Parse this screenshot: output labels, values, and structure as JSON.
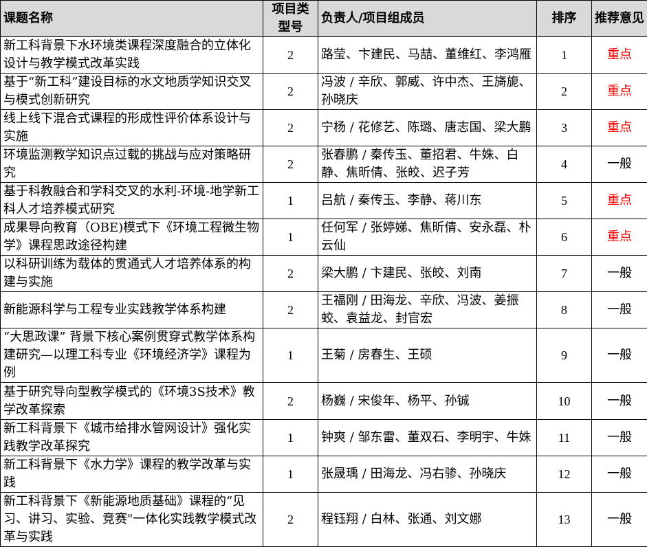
{
  "headers": {
    "title": "课题名称",
    "type": "项目类型号",
    "members": "负责人/项目组成员",
    "rank": "排序",
    "recommendation": "推荐意见"
  },
  "colors": {
    "header_bg": "#d9d9d9",
    "key_recommendation": "#ff0000"
  },
  "rows": [
    {
      "title": "新工科背景下水环境类课程深度融合的立体化设计与教学模式改革实践",
      "type": "2",
      "members": "路莹、卞建民、马喆、董维红、李鸿雁",
      "rank": "1",
      "recommendation": "重点",
      "highlight": true
    },
    {
      "title": "基于“新工科”建设目标的水文地质学知识交叉与模式创新研究",
      "type": "2",
      "members": "冯波 / 辛欣、郭威、许中杰、王旖旎、孙晓庆",
      "rank": "2",
      "recommendation": "重点",
      "highlight": true
    },
    {
      "title": "线上线下混合式课程的形成性评价体系设计与实施",
      "type": "2",
      "members": "宁杨 / 花修艺、陈璐、唐志国、梁大鹏",
      "rank": "3",
      "recommendation": "重点",
      "highlight": true
    },
    {
      "title": "环境监测教学知识点过载的挑战与应对策略研究",
      "type": "2",
      "members": "张春鹏 / 秦传玉、董招君、牛姝、白静、焦昕倩、张皎、迟子芳",
      "rank": "4",
      "recommendation": "一般",
      "highlight": false
    },
    {
      "title": "基于科教融合和学科交叉的水利-环境-地学新工科人才培养模式研究",
      "type": "1",
      "members": "吕航 / 秦传玉、李静、蒋川东",
      "rank": "5",
      "recommendation": "重点",
      "highlight": true
    },
    {
      "title": "成果导向教育（OBE)模式下《环境工程微生物学》课程思政途径构建",
      "type": "1",
      "members": "任何军 / 张婷娣、焦昕倩、安永磊、朴云仙",
      "rank": "6",
      "recommendation": "重点",
      "highlight": true
    },
    {
      "title": "以科研训练为载体的贯通式人才培养体系的构建与实施",
      "type": "2",
      "members": "梁大鹏 / 卞建民、张皎、刘南",
      "rank": "7",
      "recommendation": "一般",
      "highlight": false
    },
    {
      "title": "新能源科学与工程专业实践教学体系构建",
      "type": "2",
      "members": "王福刚 / 田海龙、辛欣、冯波、姜振蛟、袁益龙、封官宏",
      "rank": "8",
      "recommendation": "一般",
      "highlight": false
    },
    {
      "title": "“大思政课” 背景下核心案例贯穿式教学体系构建研究—以理工科专业《环境经济学》课程为例",
      "type": "1",
      "members": "王菊 / 房春生、王硕",
      "rank": "9",
      "recommendation": "一般",
      "highlight": false
    },
    {
      "title": "基于研究导向型教学模式的《环境3S技术》教学改革探索",
      "type": "2",
      "members": "杨巍 / 宋俊年、杨平、孙铖",
      "rank": "10",
      "recommendation": "一般",
      "highlight": false
    },
    {
      "title": "新工科背景下《城市给排水管网设计》强化实践教学改革探究",
      "type": "1",
      "members": "钟爽 / 邹东雷、董双石、李明宇、牛姝",
      "rank": "11",
      "recommendation": "一般",
      "highlight": false
    },
    {
      "title": "新工科背景下《水力学》课程的教学改革与实践",
      "type": "1",
      "members": "张晟瑀 / 田海龙、冯右骖、孙晓庆",
      "rank": "12",
      "recommendation": "一般",
      "highlight": false
    },
    {
      "title": "新工科背景下《新能源地质基础》课程的“见习、讲习、实验、竞赛\"一体化实践教学模式改革与实践",
      "type": "2",
      "members": "程钰翔 / 白林、张通、刘文娜",
      "rank": "13",
      "recommendation": "一般",
      "highlight": false
    }
  ]
}
